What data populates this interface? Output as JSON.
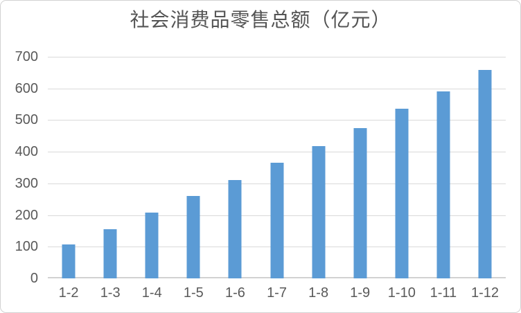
{
  "chart_data": {
    "type": "bar",
    "title": "社会消费品零售总额（亿元）",
    "categories": [
      "1-2",
      "1-3",
      "1-4",
      "1-5",
      "1-6",
      "1-7",
      "1-8",
      "1-9",
      "1-10",
      "1-11",
      "1-12"
    ],
    "values": [
      108,
      156,
      207,
      261,
      310,
      366,
      417,
      475,
      535,
      590,
      658
    ],
    "xlabel": "",
    "ylabel": "",
    "ylim": [
      0,
      700
    ],
    "yticks": [
      0,
      100,
      200,
      300,
      400,
      500,
      600,
      700
    ],
    "grid": true,
    "legend": false,
    "colors": {
      "bar": "#5b9bd5",
      "gridline": "#d9d9d9",
      "axis_line": "#d2d2d2",
      "tick_label": "#595959",
      "title": "#545454",
      "canvas_border": "#d2d2d2",
      "background": "#ffffff"
    }
  }
}
